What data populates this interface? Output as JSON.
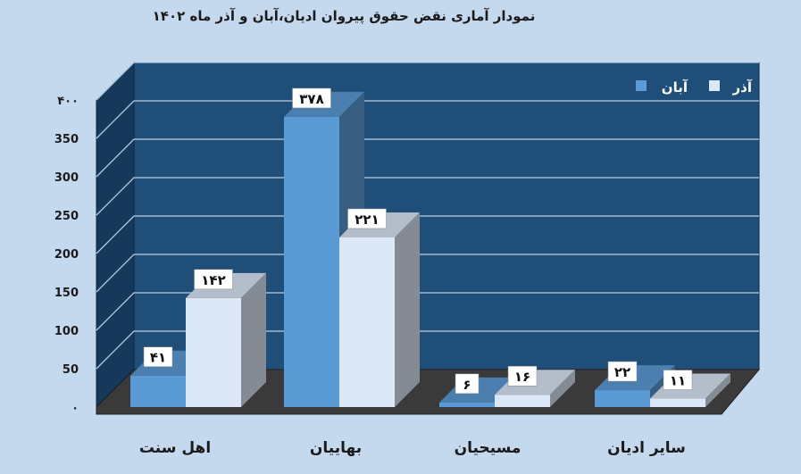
{
  "chart_data": {
    "type": "bar",
    "title": "نمودار آماری نقض حقوق پیروان ادیان،آبان و آذر ماه ۱۴۰۲",
    "categories": [
      "اهل سنت",
      "بهاییان",
      "مسیحیان",
      "سایر ادیان"
    ],
    "series": [
      {
        "name": "آبان",
        "values": [
          41,
          378,
          6,
          22
        ],
        "labels": [
          "۴۱",
          "۳۷۸",
          "۶",
          "۲۲"
        ],
        "color": "#5b9bd5"
      },
      {
        "name": "آذر",
        "values": [
          142,
          221,
          16,
          11
        ],
        "labels": [
          "۱۴۲",
          "۲۲۱",
          "۱۶",
          "۱۱"
        ],
        "color": "#dce8f7"
      }
    ],
    "yticks": [
      0,
      50,
      100,
      150,
      200,
      250,
      300,
      350,
      400
    ],
    "ytick_labels": [
      "۰",
      "50",
      "100",
      "150",
      "200",
      "250",
      "300",
      "350",
      "۴۰۰"
    ],
    "ylim": [
      0,
      400
    ],
    "grid": true,
    "legend_position": "top-right",
    "style": "3d-clustered-column",
    "colors": {
      "background": "#c4d8ee",
      "back_wall": "#1f4e79",
      "side_wall": "#16385a",
      "floor": "#3a3a3a",
      "gridline": "#b9cde3"
    }
  }
}
